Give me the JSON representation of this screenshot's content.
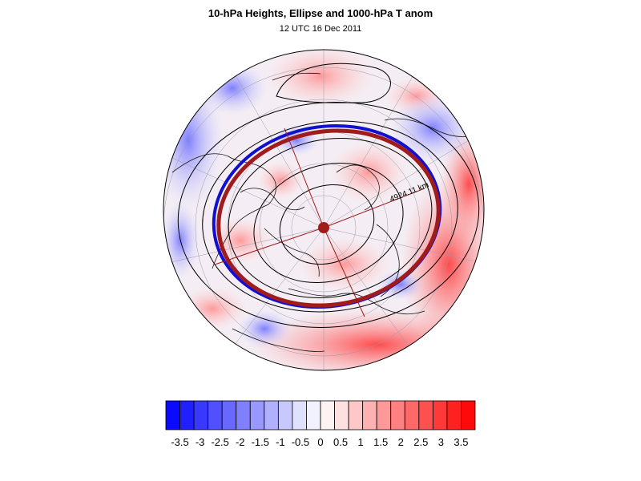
{
  "title": "10-hPa Heights, Ellipse and 1000-hPa T anom",
  "subtitle": "12 UTC 16 Dec 2011",
  "distance_label": "4924.11 km",
  "colorbar": {
    "labels": [
      "-3.5",
      "-3",
      "-2.5",
      "-2",
      "-1.5",
      "-1",
      "-0.5",
      "0",
      "0.5",
      "1",
      "1.5",
      "2",
      "2.5",
      "3",
      "3.5"
    ],
    "colors": [
      "#0a0aff",
      "#2020ff",
      "#3838ff",
      "#5050ff",
      "#6868ff",
      "#8080ff",
      "#9898ff",
      "#b0b0ff",
      "#c8c8ff",
      "#e0e0ff",
      "#f2f2ff",
      "#fff2f2",
      "#ffe0e0",
      "#ffc8c8",
      "#ffb0b0",
      "#ff9898",
      "#ff8080",
      "#ff6868",
      "#ff5050",
      "#ff3838",
      "#ff2020",
      "#ff0a0a"
    ]
  },
  "colors": {
    "ellipse": "#a01c1c",
    "jet_blue": "#1010d0",
    "contour": "#000000"
  }
}
